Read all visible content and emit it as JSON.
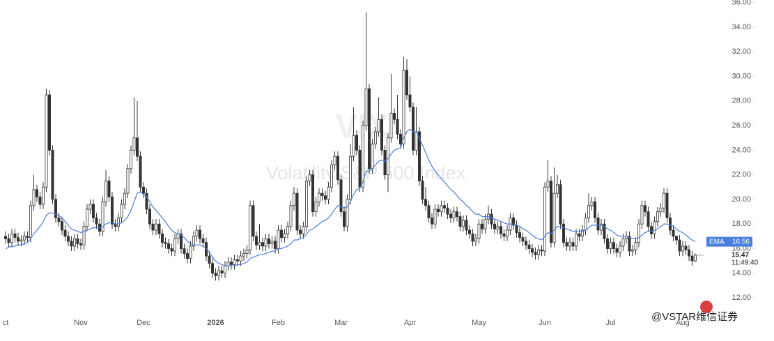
{
  "chart_data": {
    "type": "candlestick",
    "watermark_symbol": "VIX",
    "watermark_title": "Volatility S&P 500 Index",
    "watermark_brand": "@VSTAR维信证券",
    "last_time": "11:49:40",
    "up_color": "#ffffff",
    "down_color": "#333333",
    "wick_color": "#333333",
    "categories": [
      "ct",
      null,
      null,
      null,
      null,
      null,
      null,
      null,
      null,
      null,
      null,
      null,
      null,
      null,
      null,
      null,
      null,
      null,
      null,
      null,
      null,
      null,
      null,
      null,
      "Nov",
      null,
      null,
      null,
      null,
      null,
      null,
      null,
      null,
      null,
      null,
      null,
      null,
      null,
      null,
      null,
      null,
      null,
      null,
      null,
      "Dec",
      null,
      null,
      null,
      null,
      null,
      null,
      null,
      null,
      null,
      null,
      null,
      null,
      null,
      null,
      null,
      null,
      null,
      null,
      null,
      null,
      null,
      null,
      "2026",
      null,
      null,
      null,
      null,
      null,
      null,
      null,
      null,
      null,
      null,
      null,
      null,
      null,
      null,
      null,
      null,
      null,
      null,
      null,
      "Feb",
      null,
      null,
      null,
      null,
      null,
      null,
      null,
      null,
      null,
      null,
      null,
      null,
      null,
      null,
      null,
      null,
      null,
      null,
      null,
      "Mar",
      null,
      null,
      null,
      null,
      null,
      null,
      null,
      null,
      null,
      null,
      null,
      null,
      null,
      null,
      null,
      null,
      null,
      null,
      null,
      null,
      null,
      "Apr",
      null,
      null,
      null,
      null,
      null,
      null,
      null,
      null,
      null,
      null,
      null,
      null,
      null,
      null,
      null,
      null,
      null,
      null,
      null,
      null,
      null,
      "May",
      null,
      null,
      null,
      null,
      null,
      null,
      null,
      null,
      null,
      null,
      null,
      null,
      null,
      null,
      null,
      null,
      null,
      null,
      null,
      null,
      "Jun",
      null,
      null,
      null,
      null,
      null,
      null,
      null,
      null,
      null,
      null,
      null,
      null,
      null,
      null,
      null,
      null,
      null,
      null,
      null,
      null,
      "Jul",
      null,
      null,
      null,
      null,
      null,
      null,
      null,
      null,
      null,
      null,
      null,
      null,
      null,
      null,
      null,
      null,
      null,
      null,
      null,
      null,
      null,
      null,
      "Aug",
      null,
      null,
      null,
      null
    ],
    "open": [
      17.0,
      16.8,
      16.5,
      17.2,
      16.9,
      16.6,
      16.7,
      17.0,
      16.9,
      19.5,
      20.8,
      20.2,
      19.6,
      21.0,
      28.5,
      24.0,
      20.0,
      18.5,
      18.2,
      17.5,
      17.0,
      16.6,
      16.2,
      16.8,
      16.4,
      16.3,
      17.8,
      19.2,
      19.6,
      18.5,
      18.0,
      17.4,
      19.8,
      21.5,
      20.2,
      18.0,
      17.8,
      18.5,
      19.6,
      20.5,
      22.5,
      24.0,
      25.0,
      23.5,
      21.0,
      20.5,
      19.2,
      18.0,
      17.5,
      18.0,
      17.2,
      16.5,
      16.4,
      16.0,
      15.8,
      16.8,
      17.2,
      16.0,
      15.6,
      15.2,
      16.2,
      17.0,
      17.5,
      16.8,
      16.5,
      15.4,
      14.8,
      14.0,
      13.8,
      14.2,
      14.0,
      14.6,
      14.9,
      14.7,
      15.1,
      15.0,
      15.4,
      15.6,
      15.9,
      19.5,
      17.0,
      16.3,
      16.5,
      16.2,
      16.8,
      16.4,
      16.6,
      16.0,
      17.5,
      16.9,
      17.2,
      17.8,
      19.5,
      20.5,
      17.5,
      17.2,
      17.8,
      21.5,
      22.0,
      19.0,
      19.8,
      20.5,
      20.3,
      20.0,
      21.0,
      22.8,
      23.5,
      21.6,
      19.0,
      17.8,
      20.0,
      23.5,
      25.2,
      24.0,
      21.0,
      26.0,
      29.0,
      22.5,
      24.5,
      25.5,
      26.5,
      24.0,
      22.0,
      25.0,
      27.0,
      26.5,
      25.3,
      24.5,
      30.5,
      28.5,
      27.5,
      24.0,
      25.5,
      21.5,
      20.0,
      19.5,
      18.5,
      18.0,
      19.2,
      19.0,
      19.5,
      19.3,
      18.8,
      18.5,
      19.0,
      18.6,
      17.8,
      18.3,
      17.5,
      17.2,
      16.6,
      16.8,
      18.0,
      17.6,
      18.4,
      18.8,
      18.0,
      17.6,
      17.8,
      17.2,
      17.0,
      17.5,
      18.5,
      17.9,
      17.3,
      16.9,
      16.6,
      16.3,
      16.0,
      15.7,
      15.5,
      15.9,
      15.8,
      21.0,
      21.5,
      16.5,
      20.5,
      21.2,
      18.0,
      16.5,
      16.2,
      16.5,
      16.2,
      17.2,
      17.0,
      17.5,
      18.5,
      19.5,
      19.8,
      18.5,
      17.5,
      18.0,
      16.8,
      16.0,
      16.5,
      16.0,
      15.7,
      16.2,
      16.8,
      17.0,
      15.8,
      15.9,
      16.5,
      18.0,
      19.5,
      19.0,
      17.8,
      17.2,
      18.2,
      19.0,
      19.3,
      20.5,
      18.5,
      17.5,
      17.0,
      16.7,
      15.8,
      16.2,
      15.9,
      15.4,
      15.0
    ],
    "high": [
      17.4,
      17.2,
      17.6,
      17.6,
      17.3,
      17.1,
      17.4,
      17.4,
      19.9,
      22.0,
      21.2,
      20.6,
      21.4,
      29.0,
      28.9,
      24.4,
      20.4,
      18.9,
      18.6,
      17.9,
      17.4,
      17.0,
      17.2,
      17.2,
      16.8,
      18.2,
      19.6,
      20.0,
      20.0,
      18.9,
      18.4,
      20.2,
      22.4,
      21.9,
      20.6,
      18.4,
      18.9,
      20.0,
      20.9,
      22.9,
      24.4,
      28.3,
      28.0,
      23.9,
      21.4,
      20.9,
      19.6,
      18.4,
      18.4,
      18.4,
      17.6,
      16.9,
      16.8,
      16.4,
      17.2,
      17.6,
      17.6,
      16.4,
      16.0,
      16.6,
      17.4,
      17.9,
      17.9,
      17.2,
      16.9,
      15.8,
      15.2,
      14.4,
      14.6,
      14.6,
      15.0,
      15.3,
      15.3,
      15.5,
      15.5,
      15.8,
      16.0,
      16.3,
      19.9,
      19.9,
      17.4,
      18.0,
      16.9,
      17.2,
      17.2,
      17.0,
      17.0,
      17.9,
      17.9,
      17.6,
      18.2,
      19.9,
      21.0,
      20.9,
      17.9,
      18.2,
      21.9,
      22.4,
      22.4,
      20.2,
      20.9,
      20.9,
      20.7,
      21.4,
      23.2,
      23.9,
      23.9,
      22.0,
      19.4,
      20.4,
      24.5,
      27.5,
      25.6,
      24.4,
      26.4,
      35.2,
      29.4,
      24.9,
      25.9,
      28.3,
      26.9,
      24.4,
      25.4,
      30.2,
      27.4,
      28.5,
      25.7,
      31.6,
      31.4,
      30.0,
      27.9,
      27.5,
      25.9,
      21.9,
      21.0,
      19.9,
      18.9,
      19.6,
      19.6,
      19.9,
      19.9,
      19.7,
      19.2,
      19.4,
      19.4,
      19.0,
      18.7,
      18.7,
      17.9,
      17.6,
      17.2,
      18.4,
      18.4,
      18.8,
      19.5,
      19.2,
      18.4,
      18.2,
      18.2,
      17.6,
      17.9,
      18.9,
      18.9,
      18.3,
      17.7,
      17.3,
      17.0,
      16.7,
      16.4,
      16.1,
      16.3,
      16.3,
      21.4,
      23.2,
      21.9,
      22.6,
      22.0,
      21.6,
      18.4,
      16.9,
      16.9,
      16.9,
      17.6,
      17.6,
      17.9,
      18.9,
      20.5,
      20.2,
      20.2,
      18.9,
      18.4,
      18.4,
      17.2,
      16.9,
      16.9,
      16.4,
      16.6,
      17.2,
      17.4,
      17.4,
      16.3,
      16.9,
      18.4,
      19.9,
      19.9,
      19.4,
      18.2,
      18.6,
      19.4,
      19.7,
      20.9,
      20.9,
      18.9,
      17.9,
      17.1,
      17.1,
      16.6,
      16.6,
      16.3,
      15.8,
      15.6
    ],
    "low": [
      16.4,
      16.1,
      16.1,
      16.5,
      16.2,
      16.2,
      16.3,
      16.5,
      16.5,
      19.1,
      19.8,
      19.2,
      19.2,
      20.6,
      23.6,
      19.6,
      18.1,
      17.8,
      17.1,
      16.6,
      16.2,
      15.8,
      15.8,
      16.0,
      15.9,
      15.9,
      17.4,
      18.8,
      18.1,
      17.6,
      17.0,
      17.0,
      19.4,
      19.8,
      17.6,
      17.4,
      17.4,
      18.1,
      19.2,
      20.1,
      22.1,
      23.6,
      23.1,
      20.6,
      20.1,
      18.8,
      17.6,
      17.1,
      17.1,
      16.8,
      16.1,
      16.0,
      15.6,
      15.4,
      15.4,
      16.4,
      15.6,
      15.2,
      14.8,
      14.8,
      15.8,
      16.6,
      16.4,
      16.1,
      15.0,
      14.4,
      13.6,
      13.4,
      13.4,
      13.6,
      13.6,
      14.2,
      14.3,
      14.3,
      14.6,
      14.6,
      15.0,
      15.2,
      15.5,
      16.6,
      15.9,
      15.9,
      15.8,
      15.8,
      16.0,
      16.0,
      15.6,
      15.6,
      16.5,
      16.5,
      16.8,
      17.4,
      19.1,
      17.1,
      16.8,
      16.8,
      17.4,
      21.1,
      18.6,
      18.6,
      19.4,
      19.9,
      19.6,
      19.6,
      20.6,
      22.4,
      21.2,
      18.6,
      17.4,
      17.4,
      19.6,
      23.1,
      23.6,
      20.6,
      20.6,
      25.6,
      22.1,
      22.1,
      24.1,
      25.1,
      23.6,
      21.6,
      20.6,
      24.6,
      26.1,
      24.9,
      24.1,
      24.1,
      28.1,
      27.1,
      23.6,
      23.6,
      21.1,
      19.6,
      19.1,
      18.1,
      17.6,
      17.6,
      18.6,
      18.6,
      18.9,
      18.4,
      18.1,
      18.1,
      18.2,
      17.4,
      17.4,
      17.1,
      16.8,
      16.2,
      16.2,
      16.4,
      17.2,
      17.2,
      18.0,
      17.6,
      17.2,
      17.2,
      16.8,
      16.6,
      16.6,
      17.1,
      17.5,
      16.9,
      16.5,
      16.2,
      15.9,
      15.6,
      15.3,
      15.1,
      15.1,
      15.4,
      15.4,
      20.6,
      16.1,
      16.1,
      20.1,
      17.6,
      16.1,
      15.8,
      15.8,
      15.8,
      15.8,
      16.6,
      16.6,
      17.1,
      18.1,
      19.1,
      18.1,
      17.1,
      17.1,
      16.4,
      15.6,
      15.6,
      15.6,
      15.3,
      15.3,
      15.8,
      16.4,
      15.4,
      15.4,
      15.5,
      16.1,
      17.6,
      18.6,
      17.4,
      16.8,
      16.8,
      17.8,
      18.6,
      18.9,
      18.1,
      17.1,
      16.6,
      16.3,
      15.4,
      15.4,
      15.5,
      15.0,
      14.6,
      14.9
    ],
    "close": [
      16.8,
      16.5,
      17.2,
      16.9,
      16.6,
      16.7,
      17.0,
      16.9,
      19.5,
      20.8,
      20.2,
      19.6,
      21.0,
      28.5,
      24.0,
      20.0,
      18.5,
      18.2,
      17.5,
      17.0,
      16.6,
      16.2,
      16.8,
      16.4,
      16.3,
      17.8,
      19.2,
      19.6,
      18.5,
      18.0,
      17.4,
      19.8,
      21.5,
      20.2,
      18.0,
      17.8,
      18.5,
      19.6,
      20.5,
      22.5,
      24.0,
      25.0,
      23.5,
      21.0,
      20.5,
      19.2,
      18.0,
      17.5,
      18.0,
      17.2,
      16.5,
      16.4,
      16.0,
      15.8,
      16.8,
      17.2,
      16.0,
      15.6,
      15.2,
      16.2,
      17.0,
      17.5,
      16.8,
      16.5,
      15.4,
      14.8,
      14.0,
      13.8,
      14.2,
      14.0,
      14.6,
      14.9,
      14.7,
      15.1,
      15.0,
      15.4,
      15.6,
      15.9,
      19.5,
      17.0,
      16.3,
      16.5,
      16.2,
      16.8,
      16.4,
      16.6,
      16.0,
      17.5,
      16.9,
      17.2,
      17.8,
      19.5,
      20.5,
      17.5,
      17.2,
      17.8,
      21.5,
      22.0,
      19.0,
      19.8,
      20.5,
      20.3,
      20.0,
      21.0,
      22.8,
      23.5,
      21.6,
      19.0,
      17.8,
      20.0,
      23.5,
      25.2,
      24.0,
      21.0,
      26.0,
      29.0,
      22.5,
      24.5,
      25.5,
      26.5,
      24.0,
      22.0,
      25.0,
      27.0,
      26.5,
      25.3,
      24.5,
      30.5,
      28.5,
      27.5,
      24.0,
      25.5,
      21.5,
      20.0,
      19.5,
      18.5,
      18.0,
      19.2,
      19.0,
      19.5,
      19.3,
      18.8,
      18.5,
      19.0,
      18.6,
      17.8,
      18.3,
      17.5,
      17.2,
      16.6,
      16.8,
      18.0,
      17.6,
      18.4,
      18.8,
      18.0,
      17.6,
      17.8,
      17.2,
      17.0,
      17.5,
      18.5,
      17.9,
      17.3,
      16.9,
      16.6,
      16.3,
      16.0,
      15.7,
      15.5,
      15.9,
      15.8,
      21.0,
      21.5,
      16.5,
      20.5,
      21.2,
      18.0,
      16.5,
      16.2,
      16.5,
      16.2,
      17.2,
      17.0,
      17.5,
      18.5,
      19.5,
      19.8,
      18.5,
      17.5,
      18.0,
      16.8,
      16.0,
      16.5,
      16.0,
      15.7,
      16.2,
      16.8,
      17.0,
      15.8,
      15.9,
      16.5,
      18.0,
      19.5,
      19.0,
      17.8,
      17.2,
      18.2,
      19.0,
      19.3,
      20.5,
      18.5,
      17.5,
      17.0,
      16.7,
      15.8,
      16.2,
      15.9,
      15.4,
      15.0,
      15.47
    ],
    "ema": {
      "name": "EMA",
      "color": "#4a7fe0",
      "values": [
        16.0,
        16.1,
        16.2,
        16.2,
        16.3,
        16.3,
        16.4,
        16.5,
        16.8,
        17.2,
        17.5,
        17.8,
        18.2,
        18.7,
        18.9,
        18.9,
        18.8,
        18.7,
        18.5,
        18.2,
        17.9,
        17.6,
        17.5,
        17.4,
        17.3,
        17.4,
        17.5,
        17.6,
        17.7,
        17.7,
        17.7,
        17.8,
        18.0,
        18.1,
        18.1,
        18.0,
        18.0,
        18.1,
        18.3,
        18.6,
        19.1,
        19.8,
        20.5,
        20.6,
        20.4,
        20.2,
        19.8,
        19.4,
        19.1,
        18.8,
        18.5,
        18.2,
        17.8,
        17.5,
        17.3,
        17.2,
        17.1,
        16.9,
        16.6,
        16.4,
        16.3,
        16.3,
        16.3,
        16.2,
        16.0,
        15.7,
        15.3,
        15.0,
        14.8,
        14.7,
        14.6,
        14.6,
        14.6,
        14.6,
        14.7,
        14.7,
        14.8,
        14.9,
        15.2,
        15.3,
        15.4,
        15.5,
        15.5,
        15.6,
        15.7,
        15.8,
        15.8,
        16.0,
        16.0,
        16.1,
        16.2,
        16.4,
        16.7,
        16.7,
        16.8,
        16.9,
        17.2,
        17.5,
        17.6,
        17.8,
        18.0,
        18.2,
        18.3,
        18.5,
        18.8,
        19.2,
        19.5,
        19.4,
        19.3,
        19.4,
        19.8,
        20.4,
        20.8,
        20.9,
        21.4,
        22.3,
        22.3,
        22.5,
        22.8,
        23.1,
        23.2,
        23.1,
        23.3,
        23.7,
        24.0,
        24.1,
        24.2,
        25.0,
        25.5,
        25.7,
        25.5,
        25.5,
        25.0,
        24.4,
        23.8,
        23.2,
        22.7,
        22.3,
        22.0,
        21.7,
        21.4,
        21.1,
        20.8,
        20.6,
        20.3,
        20.0,
        19.8,
        19.5,
        19.3,
        19.0,
        18.8,
        18.8,
        18.6,
        18.6,
        18.6,
        18.5,
        18.4,
        18.3,
        18.2,
        18.1,
        18.0,
        18.0,
        18.0,
        17.9,
        17.8,
        17.6,
        17.5,
        17.3,
        17.1,
        16.9,
        16.8,
        16.7,
        17.0,
        17.3,
        17.2,
        17.5,
        17.8,
        17.8,
        17.7,
        17.6,
        17.5,
        17.4,
        17.4,
        17.4,
        17.4,
        17.5,
        17.7,
        17.9,
        17.9,
        17.9,
        17.9,
        17.8,
        17.6,
        17.5,
        17.3,
        17.1,
        17.0,
        17.0,
        17.0,
        16.9,
        16.8,
        16.8,
        16.9,
        17.1,
        17.3,
        17.4,
        17.4,
        17.5,
        17.6,
        17.8,
        18.0,
        18.0,
        17.9,
        17.8,
        17.6,
        17.4,
        17.3,
        17.1,
        16.9,
        16.7,
        16.56
      ]
    },
    "ylim": [
      10.7,
      36.21
    ],
    "yticks": [
      {
        "value": 12,
        "label": "12.00"
      },
      {
        "value": 14,
        "label": "14.00"
      },
      {
        "value": 16,
        "label": "16.00"
      },
      {
        "value": 18,
        "label": "18.00"
      },
      {
        "value": 20,
        "label": "20.00"
      },
      {
        "value": 22,
        "label": "22.00"
      },
      {
        "value": 24,
        "label": "24.00"
      },
      {
        "value": 26,
        "label": "26.00"
      },
      {
        "value": 28,
        "label": "28.00"
      },
      {
        "value": 30,
        "label": "30.00"
      },
      {
        "value": 32,
        "label": "32.00"
      },
      {
        "value": 34,
        "label": "34.00"
      },
      {
        "value": 36,
        "label": "36.00"
      }
    ]
  }
}
